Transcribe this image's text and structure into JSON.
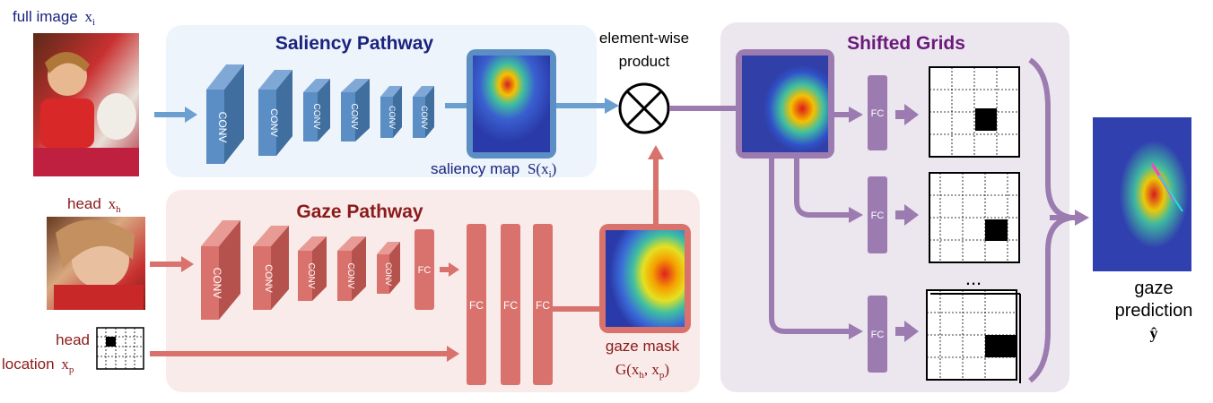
{
  "labels": {
    "full_image": "full image",
    "full_image_sym": "x",
    "full_image_sub": "i",
    "head": "head",
    "head_sym": "x",
    "head_sub": "h",
    "head_loc_1": "head",
    "head_loc_2": "location",
    "head_loc_sym": "x",
    "head_loc_sub": "p",
    "saliency_title": "Saliency Pathway",
    "gaze_title": "Gaze Pathway",
    "shifted_title": "Shifted Grids",
    "elementwise_1": "element-wise",
    "elementwise_2": "product",
    "saliency_map": "saliency map",
    "saliency_map_math": "S(x",
    "saliency_map_sub": "i",
    "saliency_map_close": ")",
    "gaze_mask": "gaze mask",
    "gaze_mask_math": "G(x",
    "gaze_mask_sub1": "h",
    "gaze_mask_mid": ", x",
    "gaze_mask_sub2": "p",
    "gaze_mask_close": ")",
    "gaze_pred_1": "gaze",
    "gaze_pred_2": "prediction",
    "gaze_pred_sym": "ŷ",
    "ellipsis": "...",
    "conv": "CONV",
    "fc": "FC"
  },
  "colors": {
    "blue_box": "#eef4fb",
    "blue_block": "#5b8ec4",
    "blue_block_dark": "#3f6e9f",
    "blue_arrow": "#6a9fd0",
    "blue_text": "#1a237e",
    "red_box": "#f8ebea",
    "red_block": "#d9726c",
    "red_block_dark": "#b5524d",
    "red_text": "#8b1a1a",
    "purple_box": "#ece6ef",
    "purple_block": "#9b7bb0",
    "purple_text": "#6a1b7a"
  }
}
